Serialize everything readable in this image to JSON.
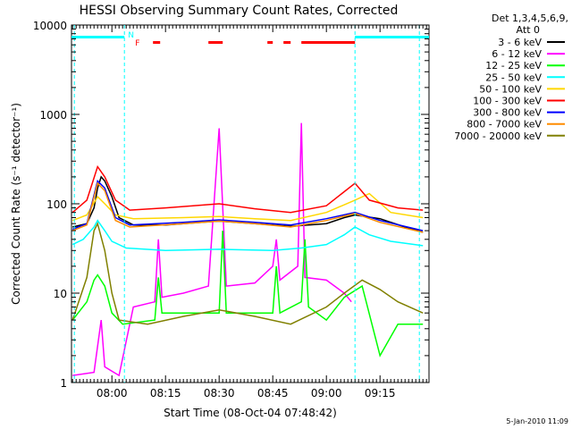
{
  "chart_data": {
    "type": "line",
    "title": "HESSI Observing Summary Count Rates, Corrected",
    "xlabel": "Start Time (08-Oct-04 07:48:42)",
    "ylabel": "Corrected Count Rate (s⁻¹ detector⁻¹)",
    "yscale": "log",
    "ylim": [
      1,
      10000
    ],
    "xlim": [
      "07:48:42",
      "09:28:42"
    ],
    "x_ticks": [
      "08:00",
      "08:15",
      "08:30",
      "08:45",
      "09:00",
      "09:15"
    ],
    "y_ticks": [
      "1",
      "10",
      "100",
      "1000",
      "10000"
    ],
    "grid": false,
    "footer": "5-Jan-2010 11:09",
    "legend": {
      "position": "right",
      "header_lines": [
        "Det 1,3,4,5,6,9,",
        "Att 0"
      ]
    },
    "flags": {
      "night_label": "N",
      "flare_label": "F",
      "night_color": "#00ffff",
      "flare_color": "#ff0000",
      "night_intervals": [
        [
          "07:48:42",
          "08:03:30"
        ],
        [
          "09:08:00",
          "09:28:42"
        ]
      ],
      "flare_intervals": [
        [
          "08:11:30",
          "08:13:30"
        ],
        [
          "08:27:00",
          "08:31:00"
        ],
        [
          "08:43:30",
          "08:45:00"
        ],
        [
          "08:48:00",
          "08:50:00"
        ],
        [
          "08:53:00",
          "09:08:00"
        ]
      ],
      "saa_boundaries": [
        "07:49:30",
        "08:03:30",
        "09:08:00",
        "09:26:00"
      ]
    },
    "series": [
      {
        "name": "3 - 6 keV",
        "color": "#000000",
        "points": [
          [
            "07:49",
            55
          ],
          [
            "07:53",
            60
          ],
          [
            "07:55",
            90
          ],
          [
            "07:56",
            150
          ],
          [
            "07:57",
            200
          ],
          [
            "07:58",
            180
          ],
          [
            "08:00",
            120
          ],
          [
            "08:02",
            70
          ],
          [
            "08:06",
            58
          ],
          [
            "08:15",
            58
          ],
          [
            "08:25",
            62
          ],
          [
            "08:30",
            64
          ],
          [
            "08:40",
            60
          ],
          [
            "08:50",
            56
          ],
          [
            "09:00",
            60
          ],
          [
            "09:05",
            70
          ],
          [
            "09:08",
            75
          ],
          [
            "09:15",
            68
          ],
          [
            "09:22",
            55
          ],
          [
            "09:27",
            48
          ]
        ]
      },
      {
        "name": "6 - 12 keV",
        "color": "#ff00ff",
        "points": [
          [
            "07:49",
            1.2
          ],
          [
            "07:55",
            1.3
          ],
          [
            "07:57",
            5
          ],
          [
            "07:58",
            1.5
          ],
          [
            "08:02",
            1.2
          ],
          [
            "08:06",
            7
          ],
          [
            "08:12",
            8
          ],
          [
            "08:13",
            40
          ],
          [
            "08:14",
            9
          ],
          [
            "08:20",
            10
          ],
          [
            "08:27",
            12
          ],
          [
            "08:30",
            700
          ],
          [
            "08:32",
            12
          ],
          [
            "08:40",
            13
          ],
          [
            "08:45",
            20
          ],
          [
            "08:46",
            40
          ],
          [
            "08:47",
            14
          ],
          [
            "08:52",
            20
          ],
          [
            "08:53",
            800
          ],
          [
            "08:54",
            15
          ],
          [
            "09:00",
            14
          ],
          [
            "09:05",
            10
          ],
          [
            "09:07",
            8
          ]
        ]
      },
      {
        "name": "12 - 25 keV",
        "color": "#00ff00",
        "points": [
          [
            "07:49",
            5
          ],
          [
            "07:53",
            8
          ],
          [
            "07:55",
            14
          ],
          [
            "07:56",
            16
          ],
          [
            "07:58",
            12
          ],
          [
            "08:00",
            6
          ],
          [
            "08:03",
            4.5
          ],
          [
            "08:12",
            5
          ],
          [
            "08:13",
            15
          ],
          [
            "08:14",
            6
          ],
          [
            "08:30",
            6
          ],
          [
            "08:31",
            50
          ],
          [
            "08:32",
            6
          ],
          [
            "08:45",
            6
          ],
          [
            "08:46",
            20
          ],
          [
            "08:47",
            6
          ],
          [
            "08:53",
            8
          ],
          [
            "08:54",
            40
          ],
          [
            "08:55",
            7
          ],
          [
            "09:00",
            5
          ],
          [
            "09:05",
            9
          ],
          [
            "09:10",
            12
          ],
          [
            "09:15",
            2
          ],
          [
            "09:20",
            4.5
          ],
          [
            "09:27",
            4.5
          ]
        ]
      },
      {
        "name": "25 - 50 keV",
        "color": "#00ffff",
        "points": [
          [
            "07:49",
            35
          ],
          [
            "07:52",
            40
          ],
          [
            "07:55",
            55
          ],
          [
            "07:56",
            65
          ],
          [
            "07:58",
            50
          ],
          [
            "08:00",
            38
          ],
          [
            "08:04",
            32
          ],
          [
            "08:15",
            30
          ],
          [
            "08:30",
            31
          ],
          [
            "08:45",
            30
          ],
          [
            "08:53",
            32
          ],
          [
            "09:00",
            35
          ],
          [
            "09:05",
            45
          ],
          [
            "09:08",
            55
          ],
          [
            "09:12",
            45
          ],
          [
            "09:18",
            38
          ],
          [
            "09:27",
            34
          ]
        ]
      },
      {
        "name": "50 - 100 keV",
        "color": "#ffd700",
        "points": [
          [
            "07:49",
            65
          ],
          [
            "07:53",
            75
          ],
          [
            "07:56",
            120
          ],
          [
            "07:58",
            100
          ],
          [
            "08:01",
            75
          ],
          [
            "08:06",
            68
          ],
          [
            "08:20",
            70
          ],
          [
            "08:30",
            72
          ],
          [
            "08:40",
            68
          ],
          [
            "08:50",
            65
          ],
          [
            "09:00",
            80
          ],
          [
            "09:08",
            110
          ],
          [
            "09:12",
            130
          ],
          [
            "09:18",
            80
          ],
          [
            "09:27",
            70
          ]
        ]
      },
      {
        "name": "100 - 300 keV",
        "color": "#ff0000",
        "points": [
          [
            "07:49",
            80
          ],
          [
            "07:53",
            110
          ],
          [
            "07:56",
            260
          ],
          [
            "07:58",
            200
          ],
          [
            "08:01",
            110
          ],
          [
            "08:05",
            85
          ],
          [
            "08:15",
            90
          ],
          [
            "08:30",
            100
          ],
          [
            "08:40",
            88
          ],
          [
            "08:50",
            80
          ],
          [
            "09:00",
            95
          ],
          [
            "09:08",
            170
          ],
          [
            "09:12",
            110
          ],
          [
            "09:20",
            90
          ],
          [
            "09:27",
            85
          ]
        ]
      },
      {
        "name": "300 - 800 keV",
        "color": "#0000ff",
        "points": [
          [
            "07:49",
            52
          ],
          [
            "07:53",
            60
          ],
          [
            "07:56",
            180
          ],
          [
            "07:58",
            150
          ],
          [
            "08:01",
            70
          ],
          [
            "08:05",
            58
          ],
          [
            "08:20",
            62
          ],
          [
            "08:30",
            66
          ],
          [
            "08:40",
            62
          ],
          [
            "08:50",
            58
          ],
          [
            "09:00",
            68
          ],
          [
            "09:08",
            80
          ],
          [
            "09:15",
            65
          ],
          [
            "09:27",
            50
          ]
        ]
      },
      {
        "name": "800 - 7000 keV",
        "color": "#ff8c00",
        "points": [
          [
            "07:49",
            50
          ],
          [
            "07:53",
            58
          ],
          [
            "07:56",
            170
          ],
          [
            "07:58",
            140
          ],
          [
            "08:01",
            65
          ],
          [
            "08:05",
            55
          ],
          [
            "08:20",
            60
          ],
          [
            "08:30",
            64
          ],
          [
            "08:40",
            60
          ],
          [
            "08:50",
            55
          ],
          [
            "09:00",
            65
          ],
          [
            "09:08",
            78
          ],
          [
            "09:15",
            62
          ],
          [
            "09:27",
            48
          ]
        ]
      },
      {
        "name": "7000 - 20000 keV",
        "color": "#808000",
        "points": [
          [
            "07:49",
            5
          ],
          [
            "07:53",
            15
          ],
          [
            "07:55",
            50
          ],
          [
            "07:56",
            60
          ],
          [
            "07:58",
            30
          ],
          [
            "08:00",
            10
          ],
          [
            "08:02",
            5
          ],
          [
            "08:10",
            4.5
          ],
          [
            "08:20",
            5.5
          ],
          [
            "08:30",
            6.5
          ],
          [
            "08:40",
            5.5
          ],
          [
            "08:50",
            4.5
          ],
          [
            "09:00",
            7
          ],
          [
            "09:05",
            10
          ],
          [
            "09:10",
            14
          ],
          [
            "09:15",
            11
          ],
          [
            "09:20",
            8
          ],
          [
            "09:27",
            6
          ]
        ]
      }
    ]
  }
}
